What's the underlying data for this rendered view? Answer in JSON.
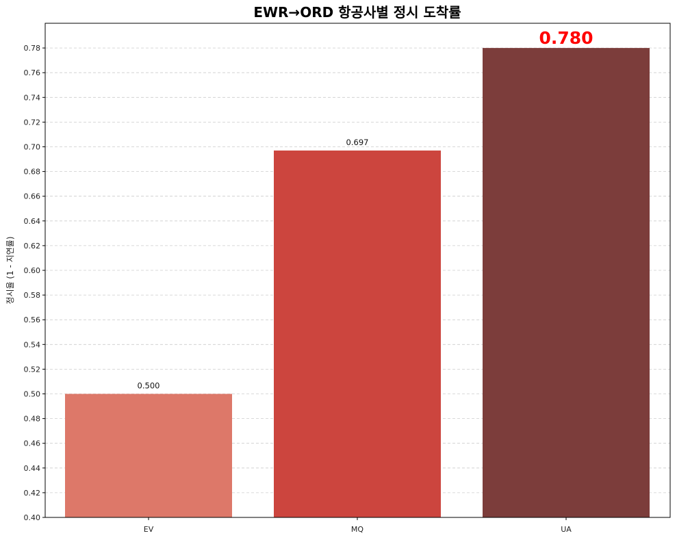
{
  "chart_data": {
    "type": "bar",
    "title": "EWR→ORD 항공사별 정시 도착률",
    "xlabel": "",
    "ylabel": "정시율 (1 - 지연률)",
    "categories": [
      "EV",
      "MQ",
      "UA"
    ],
    "values": [
      0.5,
      0.697,
      0.78
    ],
    "value_labels": [
      "0.500",
      "0.697",
      "0.780"
    ],
    "ylim": [
      0.4,
      0.8
    ],
    "yticks": [
      "0.40",
      "0.42",
      "0.44",
      "0.46",
      "0.48",
      "0.50",
      "0.52",
      "0.54",
      "0.56",
      "0.58",
      "0.60",
      "0.62",
      "0.64",
      "0.66",
      "0.68",
      "0.70",
      "0.72",
      "0.74",
      "0.76",
      "0.78"
    ],
    "grid": "y-dashed",
    "legend": "none",
    "colors": [
      "#dd7869",
      "#cc453e",
      "#7c3d3b"
    ],
    "highlight": {
      "index": 2,
      "label_color": "#ff0000"
    }
  }
}
